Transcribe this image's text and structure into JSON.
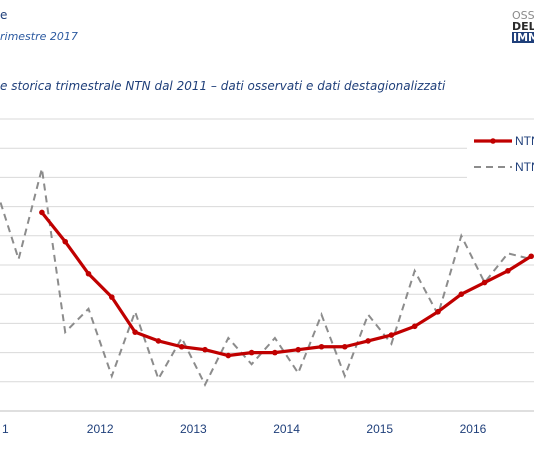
{
  "header": {
    "line1": "e",
    "line2": "rimestre 2017",
    "logo": [
      "OSS",
      "DEL",
      "IMM"
    ]
  },
  "chart_data": {
    "type": "line",
    "title": "e storica trimestrale NTN dal 2011 – dati osservati e dati destagionalizzati",
    "x": [
      "2011-Q1",
      "2011-Q2",
      "2011-Q3",
      "2011-Q4",
      "2012-Q1",
      "2012-Q2",
      "2012-Q3",
      "2012-Q4",
      "2013-Q1",
      "2013-Q2",
      "2013-Q3",
      "2013-Q4",
      "2014-Q1",
      "2014-Q2",
      "2014-Q3",
      "2014-Q4",
      "2015-Q1",
      "2015-Q2",
      "2015-Q3",
      "2015-Q4",
      "2016-Q1",
      "2016-Q2",
      "2016-Q3",
      "2016-Q4",
      "2017-Q1"
    ],
    "x_tick_labels": [
      "1",
      "2012",
      "2013",
      "2014",
      "2015",
      "2016"
    ],
    "series": [
      {
        "name": "NTN",
        "style": "solid-markers",
        "color": "#c00000",
        "values": [
          null,
          null,
          null,
          6.8,
          5.8,
          4.7,
          3.9,
          2.7,
          2.4,
          2.2,
          2.1,
          1.9,
          2.0,
          2.0,
          2.1,
          2.2,
          2.2,
          2.4,
          2.6,
          2.9,
          3.4,
          4.0,
          4.4,
          4.8,
          5.3
        ]
      },
      {
        "name": "NTN",
        "style": "dashed",
        "color": "#8c8c8c",
        "values": [
          6.0,
          7.7,
          5.2,
          8.3,
          2.7,
          3.5,
          1.2,
          3.4,
          1.1,
          2.5,
          0.9,
          2.5,
          1.6,
          2.5,
          1.3,
          3.3,
          1.2,
          3.3,
          2.3,
          4.8,
          3.3,
          6.0,
          4.4,
          5.4,
          5.2
        ]
      }
    ],
    "ylim": [
      0,
      10
    ],
    "grid": true,
    "legend_position": "top-right"
  }
}
